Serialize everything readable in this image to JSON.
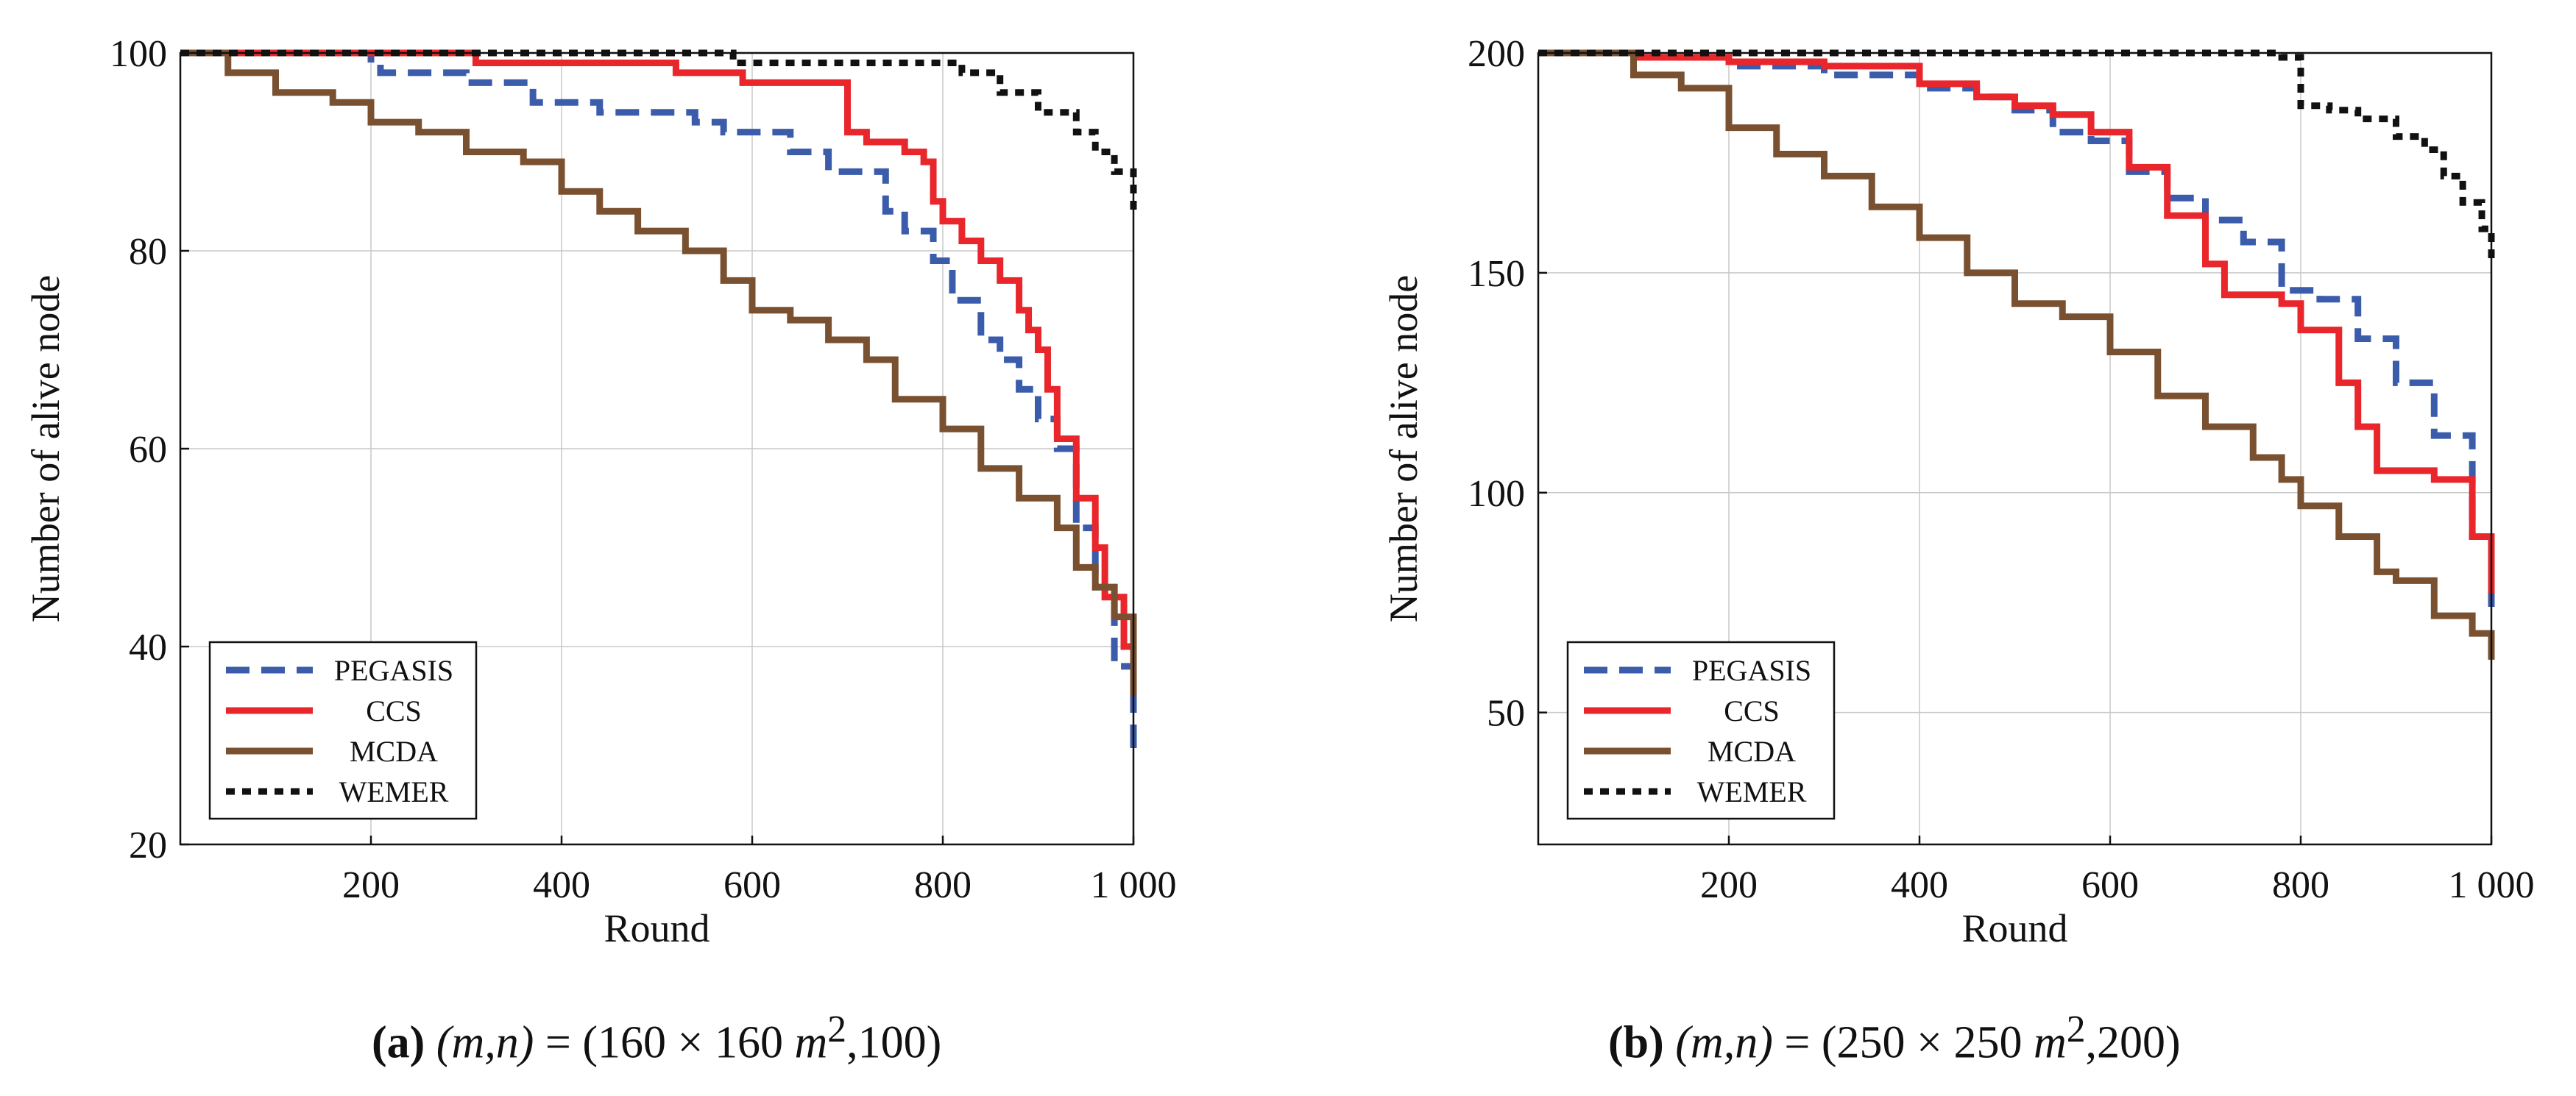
{
  "chart_data": [
    {
      "type": "line",
      "xlabel": "Round",
      "ylabel": "Number of alive node",
      "xlim": [
        0,
        1000
      ],
      "ylim": [
        20,
        100
      ],
      "xticks": [
        200,
        400,
        600,
        800,
        1000
      ],
      "xtick_labels": [
        "200",
        "400",
        "600",
        "800",
        "1 000"
      ],
      "yticks": [
        20,
        40,
        60,
        80,
        100
      ],
      "ytick_labels": [
        "20",
        "40",
        "60",
        "80",
        "100"
      ],
      "grid": true,
      "legend_position": "bottom-left",
      "series": [
        {
          "name": "PEGASIS",
          "color": "#3b5bab",
          "dash": "dashed",
          "x": [
            0,
            110,
            200,
            210,
            300,
            370,
            440,
            540,
            570,
            640,
            680,
            720,
            740,
            760,
            790,
            810,
            840,
            860,
            880,
            900,
            920,
            940,
            960,
            980,
            1000
          ],
          "y": [
            100,
            100,
            99,
            98,
            97,
            95,
            94,
            93,
            92,
            90,
            88,
            88,
            84,
            82,
            79,
            75,
            71,
            69,
            66,
            63,
            60,
            52,
            46,
            38,
            29
          ]
        },
        {
          "name": "CCS",
          "color": "#e8262b",
          "dash": "solid",
          "x": [
            0,
            310,
            520,
            590,
            700,
            720,
            760,
            780,
            790,
            800,
            820,
            840,
            860,
            880,
            890,
            900,
            910,
            920,
            940,
            960,
            970,
            990,
            1000
          ],
          "y": [
            100,
            99,
            98,
            97,
            92,
            91,
            90,
            89,
            85,
            83,
            81,
            79,
            77,
            74,
            72,
            70,
            66,
            61,
            55,
            50,
            45,
            40,
            35
          ]
        },
        {
          "name": "MCDA",
          "color": "#7a5130",
          "dash": "solid",
          "x": [
            0,
            50,
            100,
            160,
            200,
            250,
            300,
            360,
            400,
            440,
            480,
            530,
            570,
            600,
            640,
            680,
            720,
            750,
            800,
            840,
            880,
            920,
            940,
            960,
            980,
            1000
          ],
          "y": [
            100,
            98,
            96,
            95,
            93,
            92,
            90,
            89,
            86,
            84,
            82,
            80,
            77,
            74,
            73,
            71,
            69,
            65,
            62,
            58,
            55,
            52,
            48,
            46,
            43,
            35
          ]
        },
        {
          "name": "WEMER",
          "color": "#111111",
          "dash": "dotted",
          "x": [
            0,
            580,
            780,
            820,
            860,
            900,
            940,
            960,
            980,
            1000
          ],
          "y": [
            100,
            99,
            99,
            98,
            96,
            94,
            92,
            90,
            88,
            84
          ]
        }
      ]
    },
    {
      "type": "line",
      "xlabel": "Round",
      "ylabel": "Number of alive node",
      "xlim": [
        0,
        1000
      ],
      "ylim": [
        20,
        200
      ],
      "xticks": [
        200,
        400,
        600,
        800,
        1000
      ],
      "xtick_labels": [
        "200",
        "400",
        "600",
        "800",
        "1 000"
      ],
      "yticks": [
        50,
        100,
        150,
        200
      ],
      "ytick_labels": [
        "50",
        "100",
        "150",
        "200"
      ],
      "grid": true,
      "legend_position": "bottom-left",
      "series": [
        {
          "name": "PEGASIS",
          "color": "#3b5bab",
          "dash": "dashed",
          "x": [
            0,
            100,
            200,
            300,
            400,
            460,
            500,
            540,
            580,
            620,
            660,
            700,
            740,
            780,
            820,
            860,
            900,
            940,
            980,
            1000
          ],
          "y": [
            200,
            199,
            197,
            195,
            192,
            190,
            187,
            182,
            180,
            173,
            167,
            162,
            157,
            146,
            144,
            135,
            125,
            113,
            90,
            72
          ]
        },
        {
          "name": "CCS",
          "color": "#e8262b",
          "dash": "solid",
          "x": [
            0,
            100,
            200,
            300,
            400,
            460,
            500,
            540,
            580,
            620,
            660,
            700,
            720,
            780,
            800,
            840,
            860,
            880,
            940,
            980,
            1000
          ],
          "y": [
            200,
            199,
            198,
            197,
            193,
            190,
            188,
            186,
            182,
            174,
            163,
            152,
            145,
            143,
            137,
            125,
            115,
            105,
            103,
            90,
            77
          ]
        },
        {
          "name": "MCDA",
          "color": "#7a5130",
          "dash": "solid",
          "x": [
            0,
            100,
            150,
            200,
            250,
            300,
            350,
            400,
            450,
            500,
            550,
            600,
            650,
            700,
            750,
            780,
            800,
            840,
            880,
            900,
            940,
            980,
            1000
          ],
          "y": [
            200,
            195,
            192,
            183,
            177,
            172,
            165,
            158,
            150,
            143,
            140,
            132,
            122,
            115,
            108,
            103,
            97,
            90,
            82,
            80,
            72,
            68,
            62
          ]
        },
        {
          "name": "WEMER",
          "color": "#111111",
          "dash": "dotted",
          "x": [
            0,
            780,
            800,
            830,
            860,
            900,
            930,
            950,
            970,
            990,
            1000
          ],
          "y": [
            200,
            199,
            188,
            187,
            185,
            181,
            178,
            172,
            166,
            160,
            152
          ]
        }
      ]
    }
  ],
  "captions": [
    {
      "tag": "(a)",
      "mn": "(m,n)",
      "equals": " = (160 × 160 ",
      "unit": "m",
      "power": "2",
      "tail": ",100)"
    },
    {
      "tag": "(b)",
      "mn": "(m,n)",
      "equals": " = (250 × 250 ",
      "unit": "m",
      "power": "2",
      "tail": ",200)"
    }
  ]
}
